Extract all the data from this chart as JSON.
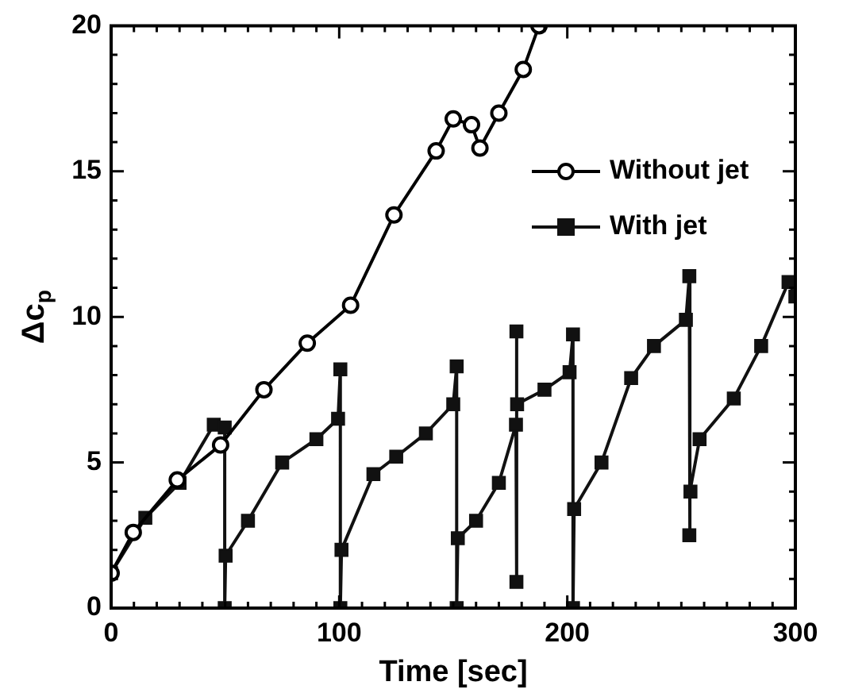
{
  "chart_data": {
    "type": "line",
    "xlabel": "Time [sec]",
    "ylabel": "Δc$_{p}$",
    "xlim": [
      0,
      300
    ],
    "xticks": [
      0,
      100,
      200,
      300
    ],
    "ylim": [
      0,
      20
    ],
    "yticks": [
      0,
      5,
      10,
      15,
      20
    ],
    "legend": "right",
    "grid": false,
    "line_style": "solid",
    "series": [
      {
        "name": "Without jet",
        "color": "#000000",
        "marker": "circle",
        "x": [
          0,
          9.7,
          29,
          48,
          67,
          86,
          105,
          124,
          142.5,
          150,
          158,
          161.7,
          170,
          180.7,
          187.6
        ],
        "values": [
          1.2,
          2.6,
          4.4,
          5.6,
          7.5,
          9.1,
          10.4,
          13.5,
          15.7,
          16.8,
          16.6,
          15.8,
          17,
          18.5,
          20
        ]
      },
      {
        "name": "With jet",
        "color": "#111111",
        "marker": "square",
        "x": [
          0,
          15,
          30,
          45,
          49.8,
          49.8,
          50.2,
          60,
          75,
          90,
          99.5,
          100.5,
          100.5,
          101,
          115,
          125,
          138,
          150,
          151.5,
          151.5,
          152,
          160,
          170,
          177.5,
          177.7,
          177.7,
          178,
          190,
          201,
          202.5,
          202.5,
          203,
          215,
          228,
          238,
          252,
          253.5,
          253.5,
          254,
          258,
          273,
          285,
          297,
          300
        ],
        "values": [
          1.2,
          3.1,
          4.3,
          6.3,
          6.2,
          0,
          1.8,
          3,
          5,
          5.8,
          6.5,
          8.2,
          0,
          2,
          4.6,
          5.2,
          6,
          7,
          8.3,
          0,
          2.4,
          3,
          4.3,
          6.3,
          9.5,
          0.9,
          7,
          7.5,
          8.1,
          9.4,
          0,
          3.4,
          5,
          7.9,
          9,
          9.9,
          11.4,
          2.5,
          4,
          5.8,
          7.2,
          9,
          11.2,
          10.7
        ]
      }
    ]
  }
}
